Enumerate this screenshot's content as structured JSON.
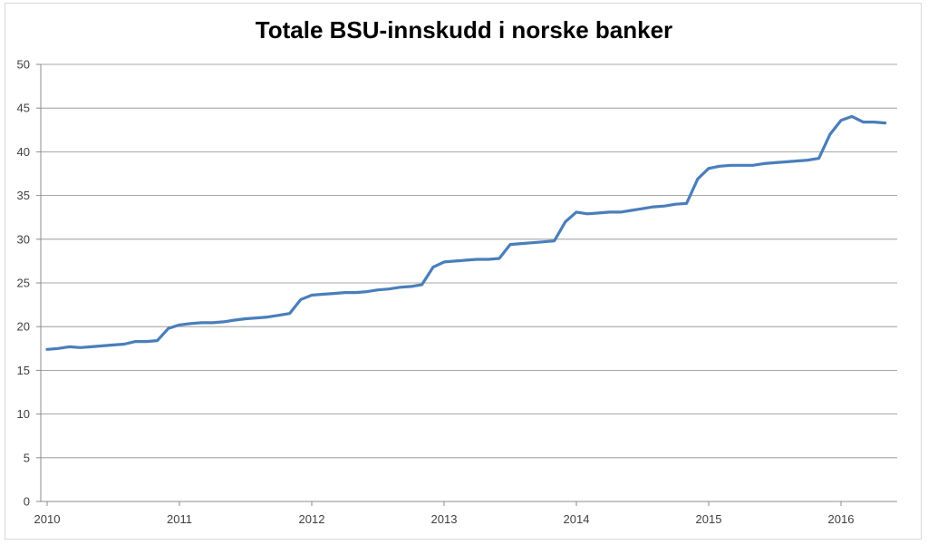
{
  "chart_data": {
    "type": "line",
    "title": "Totale BSU-innskudd i norske banker",
    "xlabel": "",
    "ylabel": "",
    "xlim": [
      2010,
      2016.4
    ],
    "ylim": [
      0,
      50
    ],
    "y_ticks": [
      0,
      5,
      10,
      15,
      20,
      25,
      30,
      35,
      40,
      45,
      50
    ],
    "x_ticks": [
      2010,
      2011,
      2012,
      2013,
      2014,
      2015,
      2016
    ],
    "x_tick_labels": [
      "2010",
      "2011",
      "2012",
      "2013",
      "2014",
      "2015",
      "2016"
    ],
    "grid": true,
    "legend": "none",
    "color": "#4a7ebb",
    "series": [
      {
        "x": [
          2010.0,
          2010.083,
          2010.167,
          2010.25,
          2010.333,
          2010.417,
          2010.5,
          2010.583,
          2010.667,
          2010.75,
          2010.833,
          2010.917,
          2011.0,
          2011.083,
          2011.167,
          2011.25,
          2011.333,
          2011.417,
          2011.5,
          2011.583,
          2011.667,
          2011.75,
          2011.833,
          2011.917,
          2012.0,
          2012.083,
          2012.167,
          2012.25,
          2012.333,
          2012.417,
          2012.5,
          2012.583,
          2012.667,
          2012.75,
          2012.833,
          2012.917,
          2013.0,
          2013.083,
          2013.167,
          2013.25,
          2013.333,
          2013.417,
          2013.5,
          2013.583,
          2013.667,
          2013.75,
          2013.833,
          2013.917,
          2014.0,
          2014.083,
          2014.167,
          2014.25,
          2014.333,
          2014.417,
          2014.5,
          2014.583,
          2014.667,
          2014.75,
          2014.833,
          2014.917,
          2015.0,
          2015.083,
          2015.167,
          2015.25,
          2015.333,
          2015.417,
          2015.5,
          2015.583,
          2015.667,
          2015.75,
          2015.833,
          2015.917,
          2016.0,
          2016.083,
          2016.167,
          2016.25,
          2016.333
        ],
        "y": [
          17.4,
          17.5,
          17.7,
          17.6,
          17.7,
          17.8,
          17.9,
          18.0,
          18.3,
          18.3,
          18.4,
          19.8,
          20.2,
          20.35,
          20.45,
          20.45,
          20.55,
          20.75,
          20.9,
          21.0,
          21.1,
          21.3,
          21.5,
          23.1,
          23.6,
          23.7,
          23.8,
          23.9,
          23.9,
          24.0,
          24.2,
          24.3,
          24.5,
          24.6,
          24.8,
          26.8,
          27.4,
          27.5,
          27.6,
          27.7,
          27.7,
          27.8,
          29.4,
          29.5,
          29.6,
          29.7,
          29.8,
          32.0,
          33.1,
          32.9,
          33.0,
          33.1,
          33.1,
          33.3,
          33.5,
          33.7,
          33.8,
          34.0,
          34.1,
          36.9,
          38.1,
          38.35,
          38.45,
          38.45,
          38.45,
          38.65,
          38.75,
          38.85,
          38.95,
          39.05,
          39.25,
          42.0,
          43.6,
          44.05,
          43.4,
          43.4,
          43.3
        ]
      }
    ]
  }
}
